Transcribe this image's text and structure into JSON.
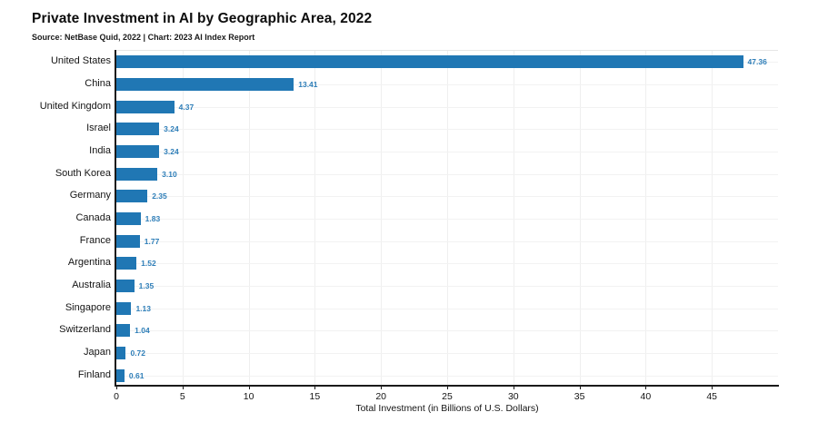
{
  "header": {
    "title": "Private Investment in AI by Geographic Area, 2022",
    "subtitle": "Source: NetBase Quid, 2022 | Chart: 2023 AI Index Report"
  },
  "chart_data": {
    "type": "bar",
    "orientation": "horizontal",
    "title": "Private Investment in AI by Geographic Area, 2022",
    "subtitle": "Source: NetBase Quid, 2022 | Chart: 2023 AI Index Report",
    "categories": [
      "United States",
      "China",
      "United Kingdom",
      "Israel",
      "India",
      "South Korea",
      "Germany",
      "Canada",
      "France",
      "Argentina",
      "Australia",
      "Singapore",
      "Switzerland",
      "Japan",
      "Finland"
    ],
    "values": [
      47.36,
      13.41,
      4.37,
      3.24,
      3.24,
      3.1,
      2.35,
      1.83,
      1.77,
      1.52,
      1.35,
      1.13,
      1.04,
      0.72,
      0.61
    ],
    "value_labels": [
      "47.36",
      "13.41",
      "4.37",
      "3.24",
      "3.24",
      "3.10",
      "2.35",
      "1.83",
      "1.77",
      "1.52",
      "1.35",
      "1.13",
      "1.04",
      "0.72",
      "0.61"
    ],
    "xlabel": "Total Investment (in Billions of U.S. Dollars)",
    "ylabel": "",
    "xticks": [
      0,
      5,
      10,
      15,
      20,
      25,
      30,
      35,
      40,
      45
    ],
    "xlim": [
      0,
      50
    ],
    "grid": true,
    "legend": "none",
    "bar_color": "#2077b4",
    "value_label_color": "#2e7eb8"
  }
}
